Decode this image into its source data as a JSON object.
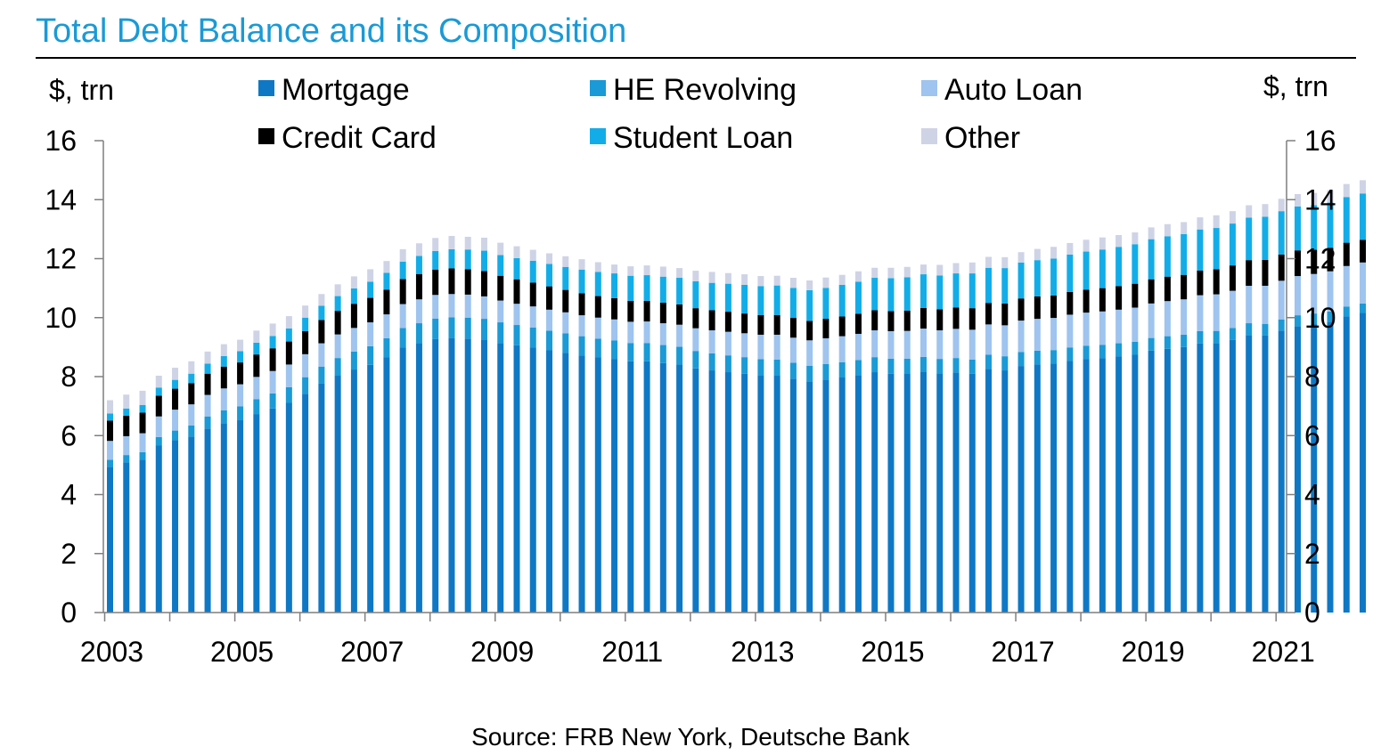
{
  "chart_data": {
    "type": "bar",
    "stacked": true,
    "title": "Total Debt Balance and its Composition",
    "y_unit_left": "$, trn",
    "y_unit_right": "$, trn",
    "ylim": [
      0,
      16
    ],
    "y_ticks": [
      "0",
      "2",
      "4",
      "6",
      "8",
      "10",
      "12",
      "14",
      "16"
    ],
    "x_tick_labels": [
      "2003",
      "2005",
      "2007",
      "2009",
      "2011",
      "2013",
      "2015",
      "2017",
      "2019",
      "2021"
    ],
    "legend_position": "top",
    "source": "Source: FRB New York, Deutsche Bank",
    "series": [
      {
        "name": "Mortgage",
        "color": "#0f78c5",
        "values": [
          4.94,
          5.09,
          5.18,
          5.66,
          5.84,
          5.97,
          6.24,
          6.42,
          6.52,
          6.73,
          6.92,
          7.11,
          7.42,
          7.76,
          8.03,
          8.24,
          8.4,
          8.65,
          8.98,
          9.13,
          9.27,
          9.31,
          9.29,
          9.26,
          9.14,
          9.06,
          8.98,
          8.89,
          8.81,
          8.72,
          8.65,
          8.6,
          8.52,
          8.52,
          8.46,
          8.41,
          8.28,
          8.21,
          8.15,
          8.1,
          8.03,
          8.03,
          7.93,
          7.84,
          7.9,
          7.97,
          8.05,
          8.15,
          8.1,
          8.11,
          8.17,
          8.11,
          8.14,
          8.1,
          8.26,
          8.21,
          8.36,
          8.41,
          8.44,
          8.53,
          8.6,
          8.63,
          8.69,
          8.74,
          8.88,
          8.94,
          9.0,
          9.12,
          9.14,
          9.24,
          9.41,
          9.4,
          9.56,
          9.71,
          9.78,
          9.86,
          10.04,
          10.16
        ]
      },
      {
        "name": "HE Revolving",
        "color": "#1a9ad6",
        "values": [
          0.24,
          0.25,
          0.26,
          0.29,
          0.33,
          0.37,
          0.41,
          0.44,
          0.47,
          0.5,
          0.51,
          0.53,
          0.56,
          0.58,
          0.6,
          0.61,
          0.63,
          0.65,
          0.67,
          0.68,
          0.7,
          0.7,
          0.71,
          0.7,
          0.7,
          0.69,
          0.68,
          0.67,
          0.66,
          0.65,
          0.64,
          0.63,
          0.62,
          0.62,
          0.61,
          0.6,
          0.59,
          0.58,
          0.57,
          0.56,
          0.56,
          0.55,
          0.54,
          0.53,
          0.53,
          0.52,
          0.51,
          0.51,
          0.51,
          0.5,
          0.5,
          0.49,
          0.49,
          0.48,
          0.48,
          0.48,
          0.47,
          0.47,
          0.46,
          0.46,
          0.45,
          0.45,
          0.44,
          0.44,
          0.43,
          0.43,
          0.42,
          0.42,
          0.41,
          0.41,
          0.4,
          0.39,
          0.38,
          0.37,
          0.36,
          0.35,
          0.33,
          0.32
        ]
      },
      {
        "name": "Auto Loan",
        "color": "#9ec4ef",
        "values": [
          0.64,
          0.64,
          0.64,
          0.7,
          0.71,
          0.72,
          0.73,
          0.74,
          0.75,
          0.76,
          0.76,
          0.77,
          0.78,
          0.79,
          0.8,
          0.8,
          0.81,
          0.81,
          0.81,
          0.81,
          0.8,
          0.79,
          0.78,
          0.76,
          0.74,
          0.72,
          0.72,
          0.71,
          0.71,
          0.71,
          0.71,
          0.71,
          0.72,
          0.73,
          0.74,
          0.75,
          0.77,
          0.78,
          0.8,
          0.81,
          0.83,
          0.84,
          0.85,
          0.86,
          0.87,
          0.88,
          0.89,
          0.91,
          0.93,
          0.94,
          0.96,
          0.97,
          0.99,
          1.01,
          1.03,
          1.05,
          1.07,
          1.08,
          1.09,
          1.11,
          1.12,
          1.13,
          1.14,
          1.16,
          1.17,
          1.19,
          1.2,
          1.22,
          1.24,
          1.26,
          1.27,
          1.29,
          1.31,
          1.33,
          1.34,
          1.36,
          1.38,
          1.39
        ]
      },
      {
        "name": "Credit Card",
        "color": "#000000",
        "values": [
          0.69,
          0.69,
          0.7,
          0.7,
          0.71,
          0.72,
          0.72,
          0.74,
          0.74,
          0.76,
          0.77,
          0.78,
          0.78,
          0.79,
          0.8,
          0.82,
          0.83,
          0.84,
          0.85,
          0.86,
          0.86,
          0.87,
          0.86,
          0.86,
          0.84,
          0.83,
          0.81,
          0.79,
          0.76,
          0.75,
          0.73,
          0.72,
          0.71,
          0.7,
          0.7,
          0.69,
          0.68,
          0.68,
          0.68,
          0.67,
          0.67,
          0.67,
          0.67,
          0.66,
          0.66,
          0.67,
          0.68,
          0.68,
          0.68,
          0.69,
          0.7,
          0.71,
          0.72,
          0.73,
          0.73,
          0.74,
          0.75,
          0.76,
          0.76,
          0.77,
          0.78,
          0.79,
          0.8,
          0.81,
          0.82,
          0.83,
          0.83,
          0.84,
          0.85,
          0.86,
          0.87,
          0.88,
          0.89,
          0.87,
          0.82,
          0.8,
          0.79,
          0.77
        ]
      },
      {
        "name": "Student Loan",
        "color": "#12ade8",
        "values": [
          0.24,
          0.25,
          0.26,
          0.28,
          0.3,
          0.32,
          0.34,
          0.36,
          0.38,
          0.4,
          0.42,
          0.44,
          0.46,
          0.48,
          0.5,
          0.52,
          0.55,
          0.57,
          0.59,
          0.61,
          0.63,
          0.65,
          0.67,
          0.69,
          0.7,
          0.72,
          0.74,
          0.76,
          0.78,
          0.8,
          0.82,
          0.84,
          0.85,
          0.87,
          0.88,
          0.9,
          0.91,
          0.93,
          0.95,
          0.97,
          0.98,
          1.0,
          1.02,
          1.04,
          1.05,
          1.07,
          1.09,
          1.1,
          1.12,
          1.13,
          1.14,
          1.15,
          1.16,
          1.18,
          1.19,
          1.2,
          1.22,
          1.23,
          1.25,
          1.27,
          1.29,
          1.31,
          1.33,
          1.34,
          1.36,
          1.37,
          1.38,
          1.39,
          1.4,
          1.42,
          1.44,
          1.46,
          1.47,
          1.49,
          1.51,
          1.53,
          1.55,
          1.57
        ]
      },
      {
        "name": "Other",
        "color": "#cfd3e6",
        "values": [
          0.45,
          0.47,
          0.48,
          0.4,
          0.41,
          0.42,
          0.41,
          0.4,
          0.39,
          0.41,
          0.42,
          0.42,
          0.41,
          0.4,
          0.4,
          0.41,
          0.42,
          0.4,
          0.42,
          0.43,
          0.44,
          0.45,
          0.43,
          0.44,
          0.42,
          0.4,
          0.37,
          0.36,
          0.36,
          0.35,
          0.33,
          0.3,
          0.32,
          0.33,
          0.34,
          0.33,
          0.36,
          0.37,
          0.36,
          0.36,
          0.34,
          0.33,
          0.34,
          0.33,
          0.35,
          0.34,
          0.35,
          0.34,
          0.35,
          0.35,
          0.33,
          0.36,
          0.35,
          0.37,
          0.37,
          0.37,
          0.35,
          0.38,
          0.4,
          0.39,
          0.4,
          0.41,
          0.4,
          0.4,
          0.4,
          0.41,
          0.41,
          0.41,
          0.43,
          0.42,
          0.42,
          0.43,
          0.42,
          0.42,
          0.42,
          0.42,
          0.44,
          0.45
        ]
      }
    ]
  }
}
